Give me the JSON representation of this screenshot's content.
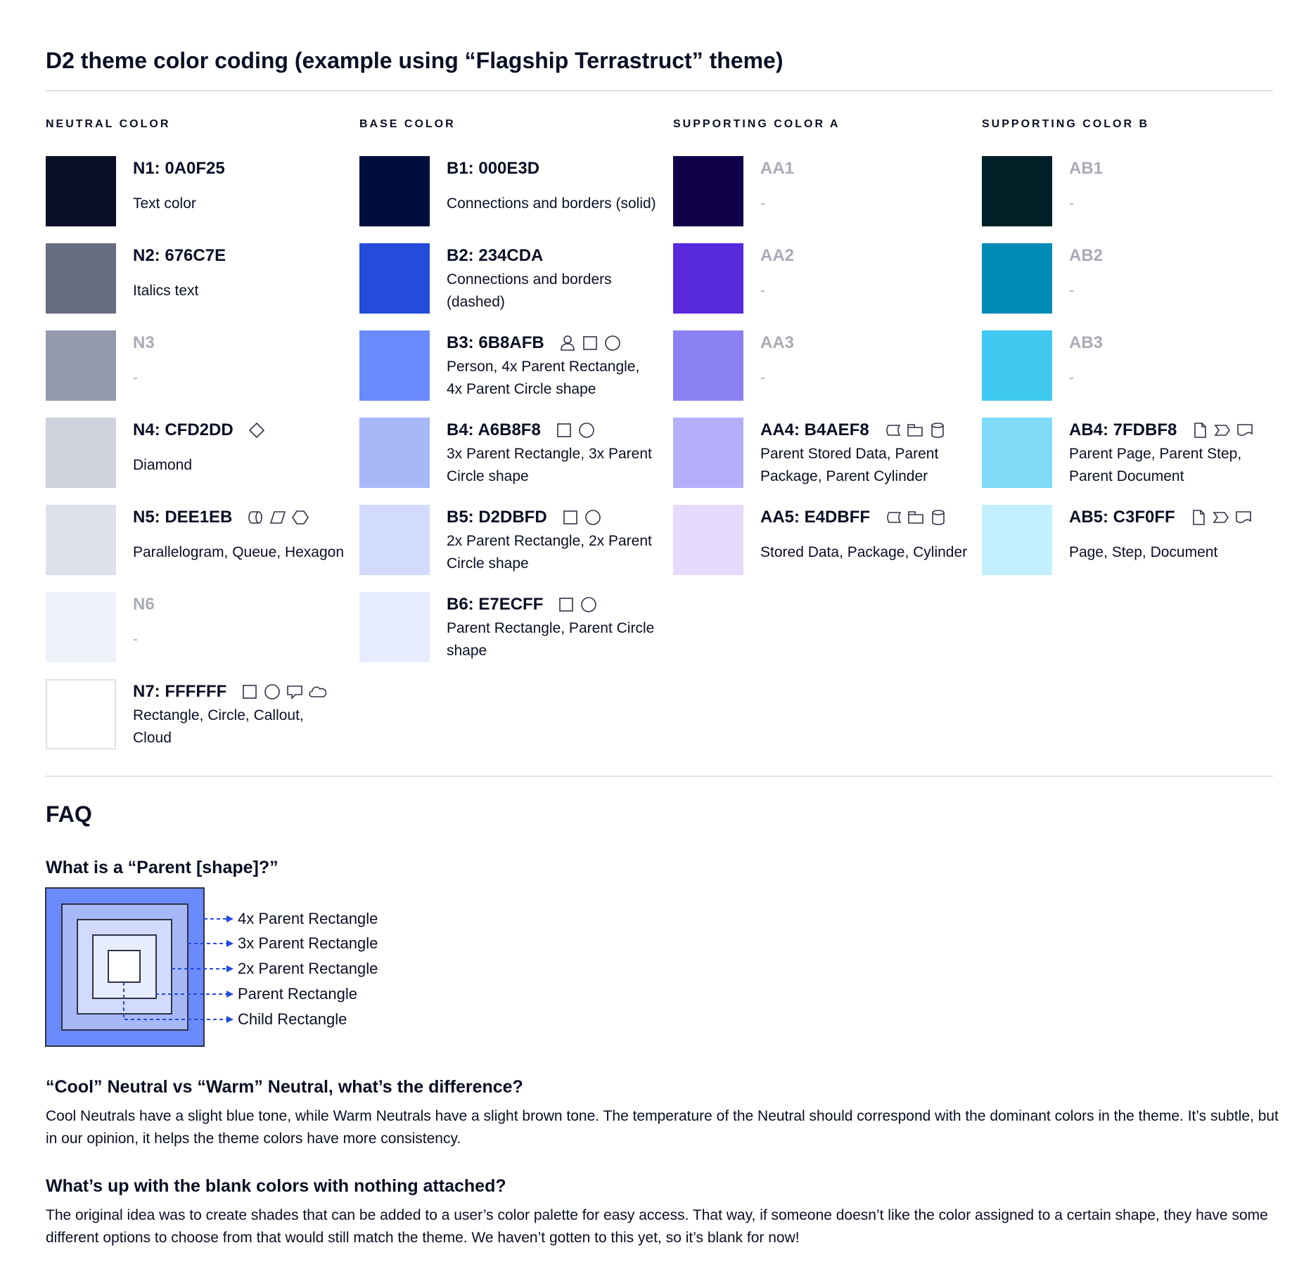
{
  "title": "D2 theme color coding (example using “Flagship Terrastruct” theme)",
  "columns": [
    {
      "heading": "NEUTRAL COLOR",
      "items": [
        {
          "name": "N1: 0A0F25",
          "color": "#0A0F25",
          "desc": "Text color",
          "icons": []
        },
        {
          "name": "N2: 676C7E",
          "color": "#676C7E",
          "desc": "Italics text",
          "icons": []
        },
        {
          "name": "N3",
          "color": "#9499AB",
          "desc": "-",
          "muted": true,
          "icons": []
        },
        {
          "name": "N4: CFD2DD",
          "color": "#CFD2DD",
          "desc": "Diamond",
          "icons": [
            "diamond"
          ]
        },
        {
          "name": "N5: DEE1EB",
          "color": "#DEE1EB",
          "desc": "Parallelogram, Queue, Hexagon",
          "icons": [
            "queue",
            "parallelogram",
            "hexagon"
          ]
        },
        {
          "name": "N6",
          "color": "#EEF1F8",
          "desc": "-",
          "muted": true,
          "icons": []
        },
        {
          "name": "N7: FFFFFF",
          "color": "#FFFFFF",
          "desc": "Rectangle, Circle, Callout, Cloud",
          "icons": [
            "rectangle",
            "circle",
            "callout",
            "cloud"
          ],
          "bordered": true
        }
      ]
    },
    {
      "heading": "BASE COLOR",
      "items": [
        {
          "name": "B1: 000E3D",
          "color": "#000E3D",
          "desc": "Connections and borders (solid)",
          "icons": []
        },
        {
          "name": "B2: 234CDA",
          "color": "#234CDA",
          "desc": "Connections and borders (dashed)",
          "icons": []
        },
        {
          "name": "B3: 6B8AFB",
          "color": "#6B8AFB",
          "desc": "Person, 4x Parent Rectangle, 4x Parent Circle shape",
          "icons": [
            "person",
            "rectangle",
            "circle"
          ]
        },
        {
          "name": "B4: A6B8F8",
          "color": "#A6B8F8",
          "desc": "3x Parent Rectangle, 3x Parent Circle shape",
          "icons": [
            "rectangle",
            "circle"
          ]
        },
        {
          "name": "B5: D2DBFD",
          "color": "#D2DBFD",
          "desc": "2x Parent Rectangle, 2x Parent Circle shape",
          "icons": [
            "rectangle",
            "circle"
          ]
        },
        {
          "name": "B6: E7ECFF",
          "color": "#E7ECFF",
          "desc": "Parent Rectangle, Parent Circle shape",
          "icons": [
            "rectangle",
            "circle"
          ]
        }
      ]
    },
    {
      "heading": "SUPPORTING COLOR A",
      "items": [
        {
          "name": "AA1",
          "color": "#10004A",
          "desc": "-",
          "muted": true,
          "icons": []
        },
        {
          "name": "AA2",
          "color": "#5829DC",
          "desc": "-",
          "muted": true,
          "icons": []
        },
        {
          "name": "AA3",
          "color": "#8B81F2",
          "desc": "-",
          "muted": true,
          "icons": []
        },
        {
          "name": "AA4: B4AEF8",
          "color": "#B4AEF8",
          "desc": "Parent Stored Data, Parent Package,  Parent Cylinder",
          "icons": [
            "stored-data",
            "package",
            "cylinder"
          ]
        },
        {
          "name": "AA5: E4DBFF",
          "color": "#E4DBFF",
          "desc": "Stored Data, Package, Cylinder",
          "icons": [
            "stored-data",
            "package",
            "cylinder"
          ]
        }
      ]
    },
    {
      "heading": "SUPPORTING COLOR B",
      "items": [
        {
          "name": "AB1",
          "color": "#001F27",
          "desc": "-",
          "muted": true,
          "icons": []
        },
        {
          "name": "AB2",
          "color": "#008CB7",
          "desc": "-",
          "muted": true,
          "icons": []
        },
        {
          "name": "AB3",
          "color": "#3FC9F0",
          "desc": "-",
          "muted": true,
          "icons": []
        },
        {
          "name": "AB4: 7FDBF8",
          "color": "#7FDBF8",
          "desc": "Parent Page, Parent Step, Parent Document",
          "icons": [
            "page",
            "step",
            "document"
          ]
        },
        {
          "name": "AB5: C3F0FF",
          "color": "#C3F0FF",
          "desc": "Page, Step, Document",
          "icons": [
            "page",
            "step",
            "document"
          ]
        }
      ]
    }
  ],
  "faq": {
    "heading": "FAQ",
    "q1": "What is a “Parent [shape]?”",
    "diagram_labels": [
      "4x Parent Rectangle",
      "3x Parent Rectangle",
      "2x Parent Rectangle",
      "Parent Rectangle",
      "Child Rectangle"
    ],
    "diagram_colors": [
      "#6B8AFB",
      "#A6B8F8",
      "#D2DBFD",
      "#E7ECFF",
      "#FFFFFF"
    ],
    "arrow_color": "#234CDA",
    "q2": "“Cool” Neutral vs “Warm” Neutral, what’s the difference?",
    "a2": "Cool Neutrals have a slight blue tone, while Warm Neutrals have a slight brown tone. The temperature of the Neutral should correspond with the dominant colors in the theme. It’s subtle, but in our opinion, it helps the theme colors have more consistency.",
    "q3": "What’s up with the blank colors with nothing attached?",
    "a3": "The original idea was to create shades that can be added to a user’s color palette for easy access. That way, if someone doesn’t like the color assigned to a certain shape, they have some different options to choose from that would still match the theme. We haven’t gotten to this yet, so it’s blank for now!"
  }
}
